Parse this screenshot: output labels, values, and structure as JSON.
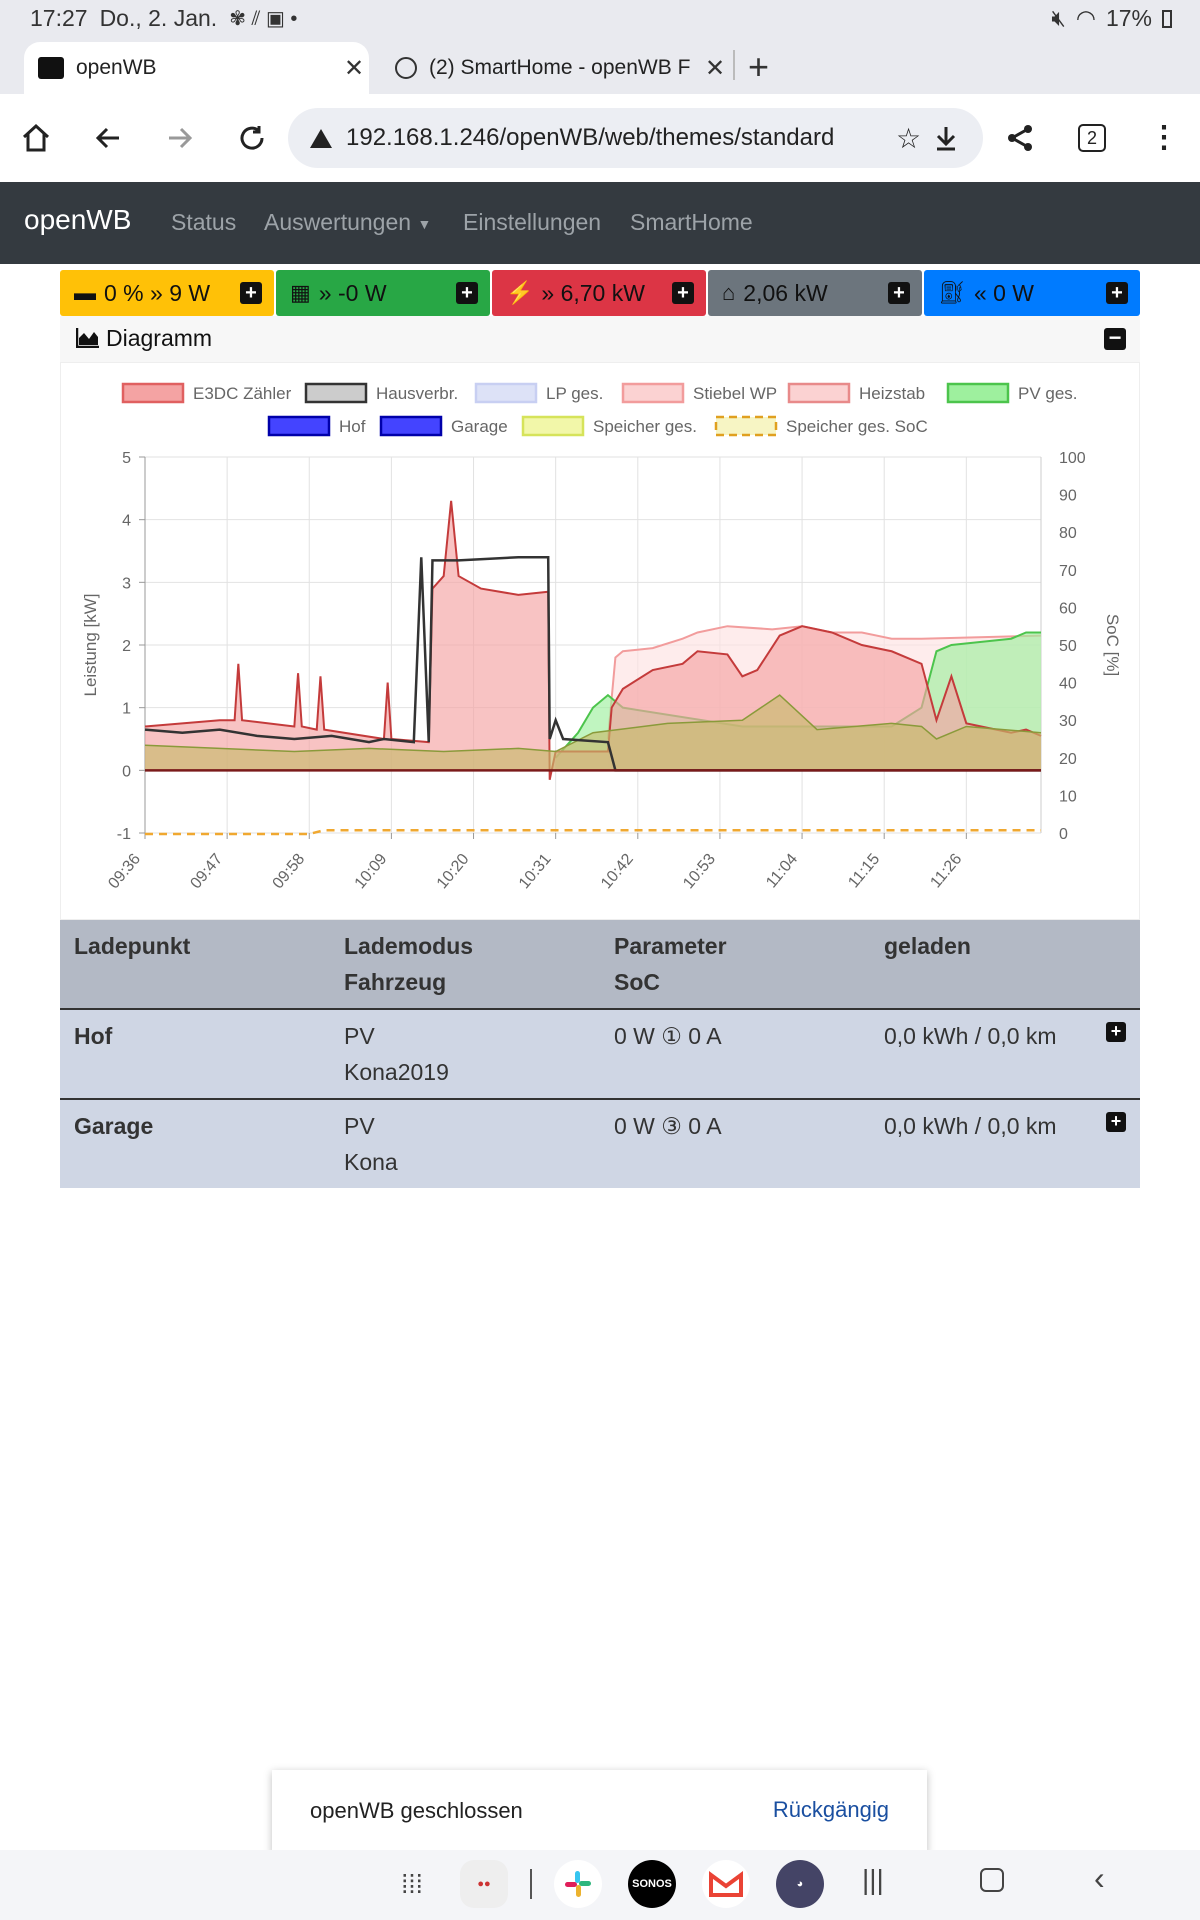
{
  "statusbar": {
    "time": "17:27",
    "date": "Do., 2. Jan.",
    "battery": "17%"
  },
  "tabs": [
    {
      "title": "openWB",
      "close": "✕"
    },
    {
      "title": "(2) SmartHome - openWB F",
      "close": "✕"
    }
  ],
  "new_tab": "+",
  "address": {
    "url": "192.168.1.246/openWB/web/themes/standard",
    "tab_count": "2"
  },
  "navbar": {
    "brand": "openWB",
    "links": [
      "Status",
      "Auswertungen",
      "Einstellungen",
      "SmartHome"
    ]
  },
  "tiles": [
    {
      "text": "0 % » 9 W",
      "color": "#ffc107"
    },
    {
      "text": "» -0 W",
      "color": "#28a745"
    },
    {
      "text": "» 6,70 kW",
      "color": "#dc3545"
    },
    {
      "text": "2,06 kW",
      "color": "#6c757d"
    },
    {
      "text": "« 0 W",
      "color": "#007bff"
    }
  ],
  "diagram": {
    "title": "Diagramm"
  },
  "chart_data": {
    "type": "area",
    "legend": [
      {
        "name": "E3DC Zähler",
        "fill": "#f4a3a3",
        "stroke": "#e06060"
      },
      {
        "name": "Hausverbr.",
        "fill": "#cccccc",
        "stroke": "#333333"
      },
      {
        "name": "LP ges.",
        "fill": "#dde2f7",
        "stroke": "#c8cff2"
      },
      {
        "name": "Stiebel WP",
        "fill": "#fbd2d2",
        "stroke": "#f29c9c"
      },
      {
        "name": "Heizstab",
        "fill": "#fbd2d2",
        "stroke": "#e88a8a"
      },
      {
        "name": "PV ges.",
        "fill": "#9ef09e",
        "stroke": "#4cc44c"
      },
      {
        "name": "Hof",
        "fill": "#4444ff",
        "stroke": "#0000aa"
      },
      {
        "name": "Garage",
        "fill": "#4444ff",
        "stroke": "#0000aa"
      },
      {
        "name": "Speicher ges.",
        "fill": "#f2f7a9",
        "stroke": "#d6e35a"
      },
      {
        "name": "Speicher ges. SoC",
        "fill": "#f7f5c4",
        "stroke": "#e0a020",
        "dashed": true
      }
    ],
    "ylabel": "Leistung [kW]",
    "y2label": "SoC [%]",
    "ylim": [
      -1,
      5
    ],
    "y2lim": [
      0,
      100
    ],
    "yticks": [
      "5",
      "4",
      "3",
      "2",
      "1",
      "0",
      "-1"
    ],
    "y2ticks": [
      "100",
      "90",
      "80",
      "70",
      "60",
      "50",
      "40",
      "30",
      "20",
      "10",
      "0"
    ],
    "xticks": [
      "09:36",
      "09:47",
      "09:58",
      "10:09",
      "10:20",
      "10:31",
      "10:42",
      "10:53",
      "11:04",
      "11:15",
      "11:26"
    ],
    "x_minutes": [
      0,
      120
    ],
    "series": [
      {
        "name": "Hausverbr.",
        "points": [
          [
            0,
            0.65
          ],
          [
            5,
            0.6
          ],
          [
            10,
            0.65
          ],
          [
            15,
            0.55
          ],
          [
            20,
            0.5
          ],
          [
            25,
            0.55
          ],
          [
            30,
            0.45
          ],
          [
            32,
            0.5
          ],
          [
            36,
            0.45
          ],
          [
            37,
            3.4
          ],
          [
            38,
            0.45
          ],
          [
            38.5,
            3.35
          ],
          [
            42,
            3.35
          ],
          [
            50,
            3.4
          ],
          [
            54,
            3.4
          ],
          [
            54.2,
            0.5
          ],
          [
            55,
            0.8
          ],
          [
            56,
            0.5
          ],
          [
            62,
            0.45
          ],
          [
            63,
            0.0
          ],
          [
            64,
            0.0
          ],
          [
            120,
            0.0
          ]
        ]
      },
      {
        "name": "E3DC Zähler",
        "points": [
          [
            0,
            0.7
          ],
          [
            5,
            0.75
          ],
          [
            10,
            0.8
          ],
          [
            12,
            0.8
          ],
          [
            12.5,
            1.7
          ],
          [
            13,
            0.8
          ],
          [
            20,
            0.7
          ],
          [
            20.5,
            1.55
          ],
          [
            21,
            0.7
          ],
          [
            23,
            0.65
          ],
          [
            23.5,
            1.5
          ],
          [
            24,
            0.65
          ],
          [
            32,
            0.5
          ],
          [
            32.5,
            1.4
          ],
          [
            33,
            0.5
          ],
          [
            38,
            0.45
          ],
          [
            38.5,
            2.9
          ],
          [
            40,
            3.1
          ],
          [
            41,
            4.3
          ],
          [
            42,
            3.1
          ],
          [
            45,
            2.9
          ],
          [
            50,
            2.8
          ],
          [
            54,
            2.85
          ],
          [
            54.2,
            -0.15
          ],
          [
            55,
            0.3
          ],
          [
            56,
            0.3
          ],
          [
            62,
            0.3
          ],
          [
            62.5,
            1.0
          ],
          [
            64,
            1.3
          ],
          [
            68,
            1.6
          ],
          [
            72,
            1.7
          ],
          [
            74,
            1.9
          ],
          [
            78,
            1.85
          ],
          [
            80,
            1.5
          ],
          [
            82,
            1.6
          ],
          [
            85,
            2.15
          ],
          [
            88,
            2.3
          ],
          [
            92,
            2.2
          ],
          [
            96,
            2.0
          ],
          [
            100,
            1.9
          ],
          [
            104,
            1.7
          ],
          [
            106,
            0.8
          ],
          [
            108,
            1.5
          ],
          [
            110,
            0.75
          ],
          [
            112,
            0.7
          ],
          [
            116,
            0.6
          ],
          [
            118,
            0.65
          ],
          [
            120,
            0.55
          ]
        ]
      },
      {
        "name": "Stiebel WP",
        "points": [
          [
            62,
            0.5
          ],
          [
            63,
            1.8
          ],
          [
            64,
            1.9
          ],
          [
            68,
            1.95
          ],
          [
            72,
            2.1
          ],
          [
            74,
            2.2
          ],
          [
            78,
            2.3
          ],
          [
            84,
            2.25
          ],
          [
            88,
            2.3
          ],
          [
            92,
            2.2
          ],
          [
            96,
            2.2
          ],
          [
            100,
            2.1
          ],
          [
            104,
            2.1
          ],
          [
            120,
            2.15
          ]
        ]
      },
      {
        "name": "PV ges.",
        "points": [
          [
            55,
            0.2
          ],
          [
            58,
            0.6
          ],
          [
            60,
            1.0
          ],
          [
            62,
            1.2
          ],
          [
            64,
            1.0
          ],
          [
            80,
            0.7
          ],
          [
            100,
            0.7
          ],
          [
            104,
            1.0
          ],
          [
            106,
            1.9
          ],
          [
            108,
            2.0
          ],
          [
            112,
            2.05
          ],
          [
            116,
            2.1
          ],
          [
            118,
            2.2
          ],
          [
            120,
            2.2
          ]
        ]
      },
      {
        "name": "Speicher ges.",
        "points": [
          [
            0,
            0.4
          ],
          [
            10,
            0.35
          ],
          [
            20,
            0.3
          ],
          [
            30,
            0.35
          ],
          [
            40,
            0.3
          ],
          [
            50,
            0.35
          ],
          [
            55,
            0.3
          ],
          [
            60,
            0.6
          ],
          [
            70,
            0.75
          ],
          [
            80,
            0.8
          ],
          [
            85,
            1.2
          ],
          [
            90,
            0.65
          ],
          [
            100,
            0.75
          ],
          [
            104,
            0.7
          ],
          [
            106,
            0.5
          ],
          [
            110,
            0.7
          ],
          [
            120,
            0.6
          ]
        ]
      },
      {
        "name": "Speicher ges. SoC",
        "points": [
          [
            0,
            0
          ],
          [
            22,
            0
          ],
          [
            24,
            1
          ],
          [
            120,
            1
          ]
        ]
      }
    ]
  },
  "ladepunkt": {
    "headers": [
      [
        "Ladepunkt",
        ""
      ],
      [
        "Lademodus",
        "Fahrzeug"
      ],
      [
        "Parameter",
        "SoC"
      ],
      [
        "geladen",
        ""
      ]
    ],
    "rows": [
      {
        "name": "Hof",
        "mode": "PV",
        "vehicle": "Kona2019",
        "param": "0 W ① 0 A",
        "charged": "0,0 kWh / 0,0 km"
      },
      {
        "name": "Garage",
        "mode": "PV",
        "vehicle": "Kona",
        "param": "0 W ③ 0 A",
        "charged": "0,0 kWh / 0,0 km"
      }
    ]
  },
  "toast": {
    "message": "openWB geschlossen",
    "action": "Rückgängig"
  },
  "dock": {
    "apps": [
      "SONOS"
    ]
  }
}
